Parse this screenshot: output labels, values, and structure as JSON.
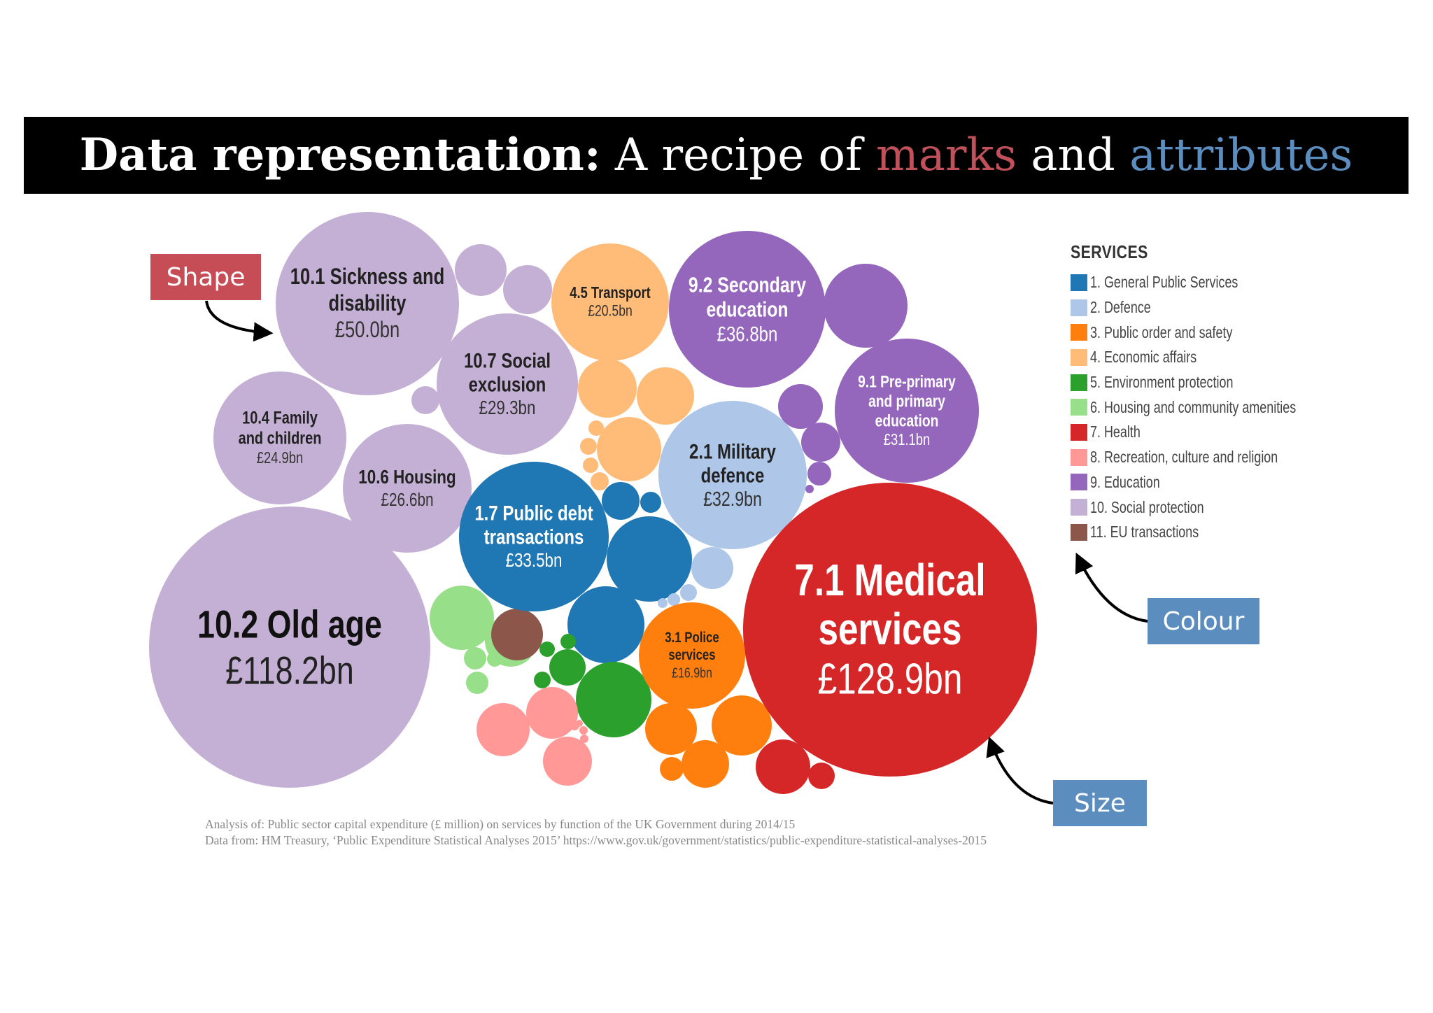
{
  "title": {
    "bold": "Data representation:",
    "part1": " A recipe of ",
    "marks": "marks",
    "part2": " and ",
    "attributes": "attributes",
    "marks_color": "#c0505a",
    "attributes_color": "#5b8dbf"
  },
  "callouts": {
    "shape": "Shape",
    "colour": "Colour",
    "size": "Size",
    "shape_color": "#c64c55",
    "blue_color": "#5b8dbf"
  },
  "legend": {
    "title": "SERVICES",
    "items": [
      {
        "label": "1. General Public Services",
        "color": "#1f77b4"
      },
      {
        "label": "2. Defence",
        "color": "#aec7e8"
      },
      {
        "label": "3. Public order and safety",
        "color": "#ff7f0e"
      },
      {
        "label": "4. Economic affairs",
        "color": "#ffbb78"
      },
      {
        "label": "5. Environment protection",
        "color": "#2ca02c"
      },
      {
        "label": "6. Housing and community amenities",
        "color": "#98df8a"
      },
      {
        "label": "7. Health",
        "color": "#d62728"
      },
      {
        "label": "8. Recreation, culture and religion",
        "color": "#ff9896"
      },
      {
        "label": "9. Education",
        "color": "#9467bd"
      },
      {
        "label": "10. Social protection",
        "color": "#c5b0d5"
      },
      {
        "label": "11. EU transactions",
        "color": "#8c564b"
      }
    ]
  },
  "footnote": {
    "line1": "Analysis of: Public sector capital expenditure (£ million) on services by function of the UK Government during 2014/15",
    "line2": "Data from: HM Treasury, ‘Public Expenditure Statistical Analyses 2015’ https://www.gov.uk/government/statistics/public-expenditure-statistical-analyses-2015"
  },
  "chart_data": {
    "type": "bubble",
    "unit": "£bn",
    "bubbles": [
      {
        "name": "10.1 Sickness and disability",
        "value": 50.0,
        "value_label": "£50.0bn",
        "group": 10
      },
      {
        "name": "10.7 Social exclusion",
        "value": 29.3,
        "value_label": "£29.3bn",
        "group": 10
      },
      {
        "name": "4.5 Transport",
        "value": 20.5,
        "value_label": "£20.5bn",
        "group": 4
      },
      {
        "name": "9.2 Secondary education",
        "value": 36.8,
        "value_label": "£36.8bn",
        "group": 9
      },
      {
        "name": "9.1 Pre-primary and primary education",
        "value": 31.1,
        "value_label": "£31.1bn",
        "group": 9
      },
      {
        "name": "10.4 Family and children",
        "value": 24.9,
        "value_label": "£24.9bn",
        "group": 10
      },
      {
        "name": "10.6 Housing",
        "value": 26.6,
        "value_label": "£26.6bn",
        "group": 10
      },
      {
        "name": "2.1 Military defence",
        "value": 32.9,
        "value_label": "£32.9bn",
        "group": 2
      },
      {
        "name": "1.7 Public debt transactions",
        "value": 33.5,
        "value_label": "£33.5bn",
        "group": 1
      },
      {
        "name": "10.2 Old age",
        "value": 118.2,
        "value_label": "£118.2bn",
        "group": 10
      },
      {
        "name": "7.1 Medical services",
        "value": 128.9,
        "value_label": "£128.9bn",
        "group": 7
      },
      {
        "name": "3.1 Police services",
        "value": 16.9,
        "value_label": "£16.9bn",
        "group": 3
      }
    ]
  }
}
